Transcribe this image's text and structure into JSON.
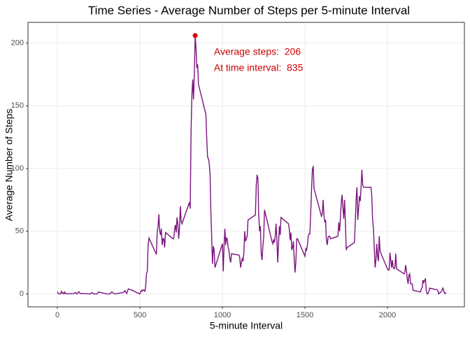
{
  "chart_data": {
    "type": "line",
    "title": "Time Series - Average Number of Steps per 5-minute Interval",
    "x_label": "5-minute Interval",
    "y_label": "Average Number of Steps",
    "color": "#7b147e",
    "x": [
      0,
      5,
      10,
      15,
      20,
      25,
      30,
      35,
      40,
      45,
      50,
      55,
      100,
      110,
      120,
      130,
      140,
      150,
      200,
      210,
      220,
      230,
      240,
      250,
      300,
      310,
      320,
      330,
      340,
      350,
      400,
      410,
      420,
      430,
      440,
      450,
      500,
      505,
      510,
      515,
      520,
      525,
      530,
      535,
      540,
      545,
      550,
      555,
      600,
      605,
      610,
      615,
      620,
      625,
      630,
      635,
      640,
      645,
      650,
      655,
      700,
      705,
      710,
      715,
      720,
      725,
      730,
      735,
      740,
      745,
      750,
      755,
      800,
      805,
      810,
      815,
      820,
      825,
      830,
      835,
      840,
      845,
      850,
      855,
      900,
      905,
      910,
      915,
      920,
      925,
      930,
      935,
      940,
      945,
      950,
      955,
      1000,
      1005,
      1010,
      1015,
      1020,
      1025,
      1030,
      1035,
      1040,
      1045,
      1050,
      1055,
      1100,
      1105,
      1110,
      1115,
      1120,
      1125,
      1130,
      1135,
      1140,
      1145,
      1150,
      1155,
      1200,
      1205,
      1210,
      1215,
      1220,
      1225,
      1230,
      1235,
      1240,
      1245,
      1250,
      1255,
      1300,
      1305,
      1310,
      1315,
      1320,
      1325,
      1330,
      1335,
      1340,
      1345,
      1350,
      1355,
      1400,
      1405,
      1410,
      1415,
      1420,
      1425,
      1430,
      1435,
      1440,
      1445,
      1450,
      1455,
      1500,
      1505,
      1510,
      1515,
      1520,
      1525,
      1530,
      1535,
      1540,
      1545,
      1550,
      1555,
      1600,
      1605,
      1610,
      1615,
      1620,
      1625,
      1630,
      1635,
      1640,
      1645,
      1650,
      1655,
      1700,
      1705,
      1710,
      1715,
      1720,
      1725,
      1730,
      1735,
      1740,
      1745,
      1750,
      1755,
      1800,
      1805,
      1810,
      1815,
      1820,
      1825,
      1830,
      1835,
      1840,
      1845,
      1850,
      1855,
      1900,
      1905,
      1910,
      1915,
      1920,
      1925,
      1930,
      1935,
      1940,
      1945,
      1950,
      1955,
      2000,
      2005,
      2010,
      2015,
      2020,
      2025,
      2030,
      2035,
      2040,
      2045,
      2050,
      2055,
      2100,
      2105,
      2110,
      2115,
      2120,
      2125,
      2130,
      2135,
      2140,
      2145,
      2150,
      2155,
      2200,
      2205,
      2210,
      2215,
      2220,
      2225,
      2230,
      2235,
      2240,
      2245,
      2250,
      2255,
      2300,
      2305,
      2310,
      2315,
      2320,
      2325,
      2330,
      2335,
      2340,
      2345,
      2350,
      2355
    ],
    "values": [
      1.7,
      0.3,
      0.1,
      0.2,
      0.1,
      2.1,
      0.5,
      0.9,
      0,
      1.5,
      0.3,
      0.1,
      0.3,
      1.1,
      0,
      1.8,
      0.2,
      0.3,
      0,
      1.1,
      0,
      0,
      0,
      1.5,
      0,
      0,
      0.2,
      1.6,
      0.5,
      0,
      1.2,
      2.6,
      0.3,
      4.1,
      3.5,
      3.1,
      0,
      1.6,
      3,
      2.2,
      3.3,
      3,
      2.1,
      6,
      16,
      18.3,
      39.5,
      44.5,
      31.5,
      49.3,
      53.8,
      63.5,
      50,
      47,
      52,
      39,
      44,
      44,
      37,
      49,
      44,
      44,
      51,
      55,
      49,
      61,
      56,
      44,
      52,
      70,
      58,
      56,
      73,
      68,
      129,
      158,
      171,
      155,
      177,
      206,
      196,
      180,
      183,
      167,
      143,
      124,
      109,
      108,
      104,
      96,
      66,
      45,
      24,
      38,
      35,
      21,
      40,
      18,
      39,
      52,
      39,
      45,
      43,
      37,
      34,
      28,
      25,
      32,
      31,
      29,
      21,
      25,
      28,
      26,
      33,
      50,
      42,
      44,
      46,
      59,
      63,
      87,
      95,
      92,
      63,
      50,
      54,
      32,
      27,
      38,
      45,
      67,
      42,
      40,
      43,
      41,
      46,
      56,
      43,
      25,
      40,
      54,
      47,
      61,
      56,
      52,
      43,
      49,
      35,
      37,
      42,
      27,
      17,
      26,
      44,
      44,
      30,
      36,
      35,
      39,
      46,
      48,
      48,
      65,
      83,
      99,
      102,
      84,
      62,
      64,
      75,
      63,
      57,
      59,
      43,
      39,
      45,
      46,
      46,
      44,
      46,
      57,
      50,
      61,
      73,
      79,
      69,
      60,
      75,
      57,
      35,
      37,
      41,
      58,
      75,
      85,
      59,
      68,
      78,
      74,
      85,
      99,
      87,
      85,
      85,
      78,
      58,
      53,
      36,
      21,
      27,
      40,
      30,
      26,
      46,
      34,
      20,
      19,
      19,
      33,
      27,
      21,
      27,
      21,
      20,
      21,
      32,
      20,
      16,
      17,
      23,
      19,
      12,
      8,
      15,
      16,
      8,
      8,
      8,
      3,
      1.5,
      4,
      5,
      11,
      9,
      11,
      12,
      2.5,
      0,
      0.1,
      1.6,
      4.6,
      3.3,
      2.8,
      0,
      0.8,
      1,
      1.6,
      2.6,
      4.7,
      3.3,
      0.6,
      0.2,
      1.1
    ],
    "highlight": {
      "x": 835,
      "y": 206,
      "color": "#e00000"
    },
    "annotations": [
      "Average steps:  206",
      " At time interval:  835"
    ],
    "annotation_color": "#cc0000",
    "xlim": [
      -178,
      2466
    ],
    "xticks": [
      0,
      500,
      1000,
      1500,
      2000
    ],
    "ylim": [
      -10.3,
      216.5
    ],
    "yticks": [
      0,
      50,
      100,
      150,
      200
    ],
    "grid": true
  }
}
